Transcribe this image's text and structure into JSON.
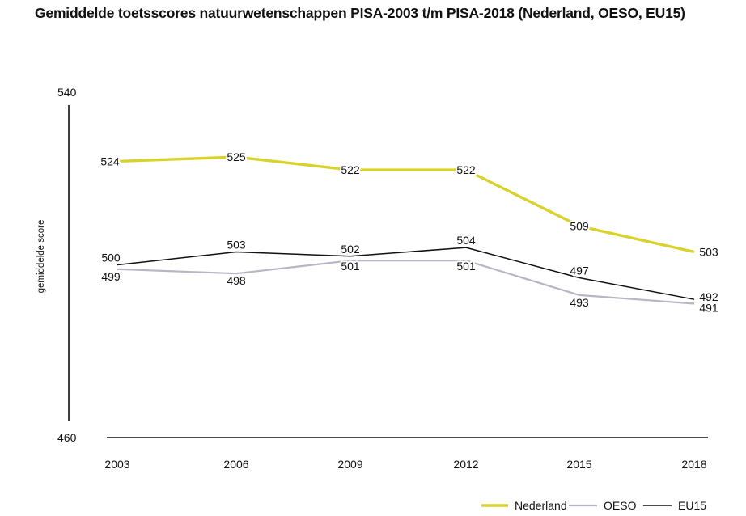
{
  "chart_data": {
    "type": "line",
    "title": "Gemiddelde toetsscores natuurwetenschappen PISA-2003 t/m PISA-2018 (Nederland, OESO, EU15)",
    "ylabel": "gemiddelde score",
    "xlabel": "",
    "ylim": [
      460,
      540
    ],
    "yticks": [
      "540",
      "460"
    ],
    "categories": [
      "2003",
      "2006",
      "2009",
      "2012",
      "2015",
      "2018"
    ],
    "series": [
      {
        "name": "Nederland",
        "color": "#d9d22b",
        "values": [
          524,
          525,
          522,
          522,
          509,
          503
        ]
      },
      {
        "name": "OESO",
        "color": "#b8b6c4",
        "values": [
          499,
          498,
          501,
          501,
          493,
          491
        ]
      },
      {
        "name": "EU15",
        "color": "#111111",
        "values": [
          500,
          503,
          502,
          504,
          497,
          492
        ]
      }
    ],
    "legend_position": "bottom-right",
    "grid": false
  }
}
